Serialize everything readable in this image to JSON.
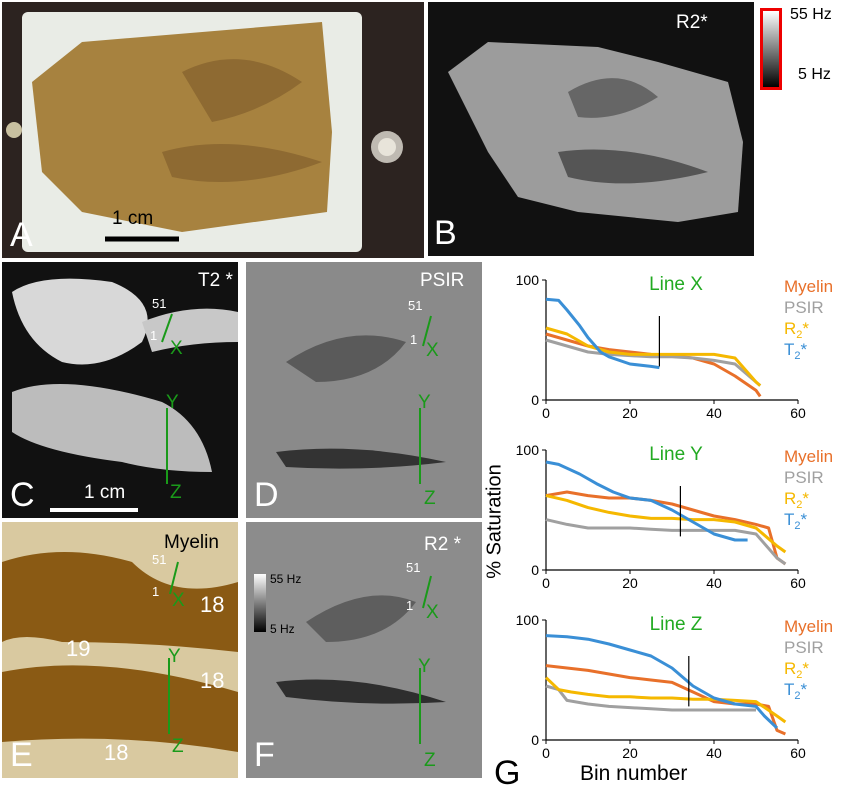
{
  "panels": {
    "A": {
      "label": "A",
      "scale_bar": "1 cm"
    },
    "B": {
      "label": "B",
      "modality": "R2*",
      "colorbar_max": "55 Hz",
      "colorbar_min": "5 Hz"
    },
    "C": {
      "label": "C",
      "modality": "T2 *",
      "scale_bar": "1 cm",
      "line_top": "51",
      "line_bottom": "1",
      "line_names": [
        "X",
        "Y",
        "Z"
      ]
    },
    "D": {
      "label": "D",
      "modality": "PSIR",
      "line_top": "51",
      "line_bottom": "1",
      "line_names": [
        "X",
        "Y",
        "Z"
      ]
    },
    "E": {
      "label": "E",
      "modality": "Myelin",
      "line_top": "51",
      "line_bottom": "1",
      "line_names": [
        "X",
        "Y",
        "Z"
      ],
      "areas": [
        "18",
        "19",
        "18",
        "18"
      ]
    },
    "F": {
      "label": "F",
      "modality": "R2 *",
      "colorbar_max": "55 Hz",
      "colorbar_min": "5 Hz",
      "line_top": "51",
      "line_bottom": "1",
      "line_names": [
        "X",
        "Y",
        "Z"
      ]
    },
    "G": {
      "label": "G"
    }
  },
  "chart_data": [
    {
      "type": "line",
      "title": "Line X",
      "xlim": [
        0,
        60
      ],
      "ylim": [
        0,
        100
      ],
      "xticks": [
        "0",
        "20",
        "40",
        "60"
      ],
      "yticks": [
        "0",
        "100"
      ],
      "marker_x": 27,
      "series": [
        {
          "name": "Myelin",
          "color": "#e8702a",
          "x": [
            0,
            5,
            10,
            15,
            20,
            25,
            30,
            35,
            40,
            45,
            50,
            51
          ],
          "y": [
            55,
            50,
            45,
            42,
            40,
            38,
            37,
            35,
            30,
            20,
            8,
            3
          ]
        },
        {
          "name": "PSIR",
          "color": "#a0a0a0",
          "x": [
            0,
            5,
            10,
            15,
            20,
            25,
            30,
            35,
            40,
            45,
            50,
            51
          ],
          "y": [
            50,
            45,
            40,
            38,
            37,
            36,
            36,
            35,
            33,
            30,
            15,
            12
          ]
        },
        {
          "name": "R2*",
          "color": "#f5b800",
          "x": [
            0,
            5,
            10,
            15,
            20,
            25,
            30,
            35,
            40,
            45,
            50,
            51
          ],
          "y": [
            60,
            55,
            45,
            40,
            38,
            38,
            38,
            38,
            38,
            35,
            15,
            12
          ]
        },
        {
          "name": "T2*",
          "color": "#3a8fd6",
          "x": [
            0,
            3,
            5,
            8,
            10,
            13,
            15,
            20,
            25,
            27
          ],
          "y": [
            84,
            83,
            75,
            62,
            52,
            40,
            36,
            30,
            28,
            27
          ]
        }
      ]
    },
    {
      "type": "line",
      "title": "Line Y",
      "xlim": [
        0,
        60
      ],
      "ylim": [
        0,
        100
      ],
      "xticks": [
        "0",
        "20",
        "40",
        "60"
      ],
      "yticks": [
        "0",
        "100"
      ],
      "marker_x": 32,
      "series": [
        {
          "name": "Myelin",
          "color": "#e8702a",
          "x": [
            0,
            5,
            10,
            15,
            20,
            25,
            30,
            35,
            40,
            45,
            50,
            53,
            55,
            57
          ],
          "y": [
            62,
            65,
            62,
            60,
            60,
            58,
            55,
            50,
            45,
            42,
            38,
            35,
            10,
            5
          ]
        },
        {
          "name": "PSIR",
          "color": "#a0a0a0",
          "x": [
            0,
            5,
            10,
            15,
            20,
            25,
            30,
            35,
            40,
            45,
            50,
            55,
            57
          ],
          "y": [
            42,
            38,
            35,
            35,
            35,
            34,
            33,
            33,
            33,
            33,
            30,
            10,
            5
          ]
        },
        {
          "name": "R2*",
          "color": "#f5b800",
          "x": [
            0,
            5,
            10,
            15,
            20,
            25,
            30,
            35,
            40,
            45,
            50,
            55,
            57
          ],
          "y": [
            62,
            58,
            52,
            48,
            45,
            43,
            43,
            42,
            42,
            40,
            35,
            20,
            15
          ]
        },
        {
          "name": "T2*",
          "color": "#3a8fd6",
          "x": [
            0,
            3,
            8,
            12,
            16,
            20,
            25,
            30,
            35,
            40,
            45,
            48
          ],
          "y": [
            90,
            88,
            80,
            72,
            65,
            60,
            58,
            50,
            40,
            30,
            25,
            25
          ]
        }
      ]
    },
    {
      "type": "line",
      "title": "Line Z",
      "xlim": [
        0,
        60
      ],
      "ylim": [
        0,
        100
      ],
      "xticks": [
        "0",
        "20",
        "40",
        "60"
      ],
      "yticks": [
        "0",
        "100"
      ],
      "marker_x": 34,
      "series": [
        {
          "name": "Myelin",
          "color": "#e8702a",
          "x": [
            0,
            5,
            10,
            15,
            20,
            25,
            30,
            35,
            40,
            45,
            50,
            53,
            55,
            57
          ],
          "y": [
            62,
            60,
            58,
            55,
            52,
            50,
            48,
            40,
            32,
            30,
            30,
            28,
            8,
            5
          ]
        },
        {
          "name": "PSIR",
          "color": "#a0a0a0",
          "x": [
            0,
            3,
            5,
            10,
            15,
            20,
            25,
            30,
            35,
            40,
            45,
            50
          ],
          "y": [
            45,
            42,
            33,
            30,
            28,
            27,
            26,
            25,
            25,
            25,
            25,
            25
          ]
        },
        {
          "name": "R2*",
          "color": "#f5b800",
          "x": [
            0,
            3,
            6,
            10,
            15,
            20,
            25,
            30,
            35,
            40,
            45,
            50,
            55,
            57
          ],
          "y": [
            52,
            42,
            40,
            38,
            36,
            36,
            35,
            35,
            34,
            34,
            33,
            32,
            20,
            15
          ]
        },
        {
          "name": "T2*",
          "color": "#3a8fd6",
          "x": [
            0,
            5,
            10,
            15,
            20,
            25,
            30,
            35,
            40,
            45,
            50,
            52,
            55
          ],
          "y": [
            87,
            86,
            84,
            80,
            75,
            70,
            60,
            45,
            35,
            30,
            28,
            20,
            10
          ]
        }
      ]
    }
  ],
  "chart_common": {
    "ylabel": "% Saturation",
    "xlabel": "Bin number",
    "legend": [
      "Myelin",
      "PSIR",
      "R2*",
      "T2*"
    ]
  }
}
